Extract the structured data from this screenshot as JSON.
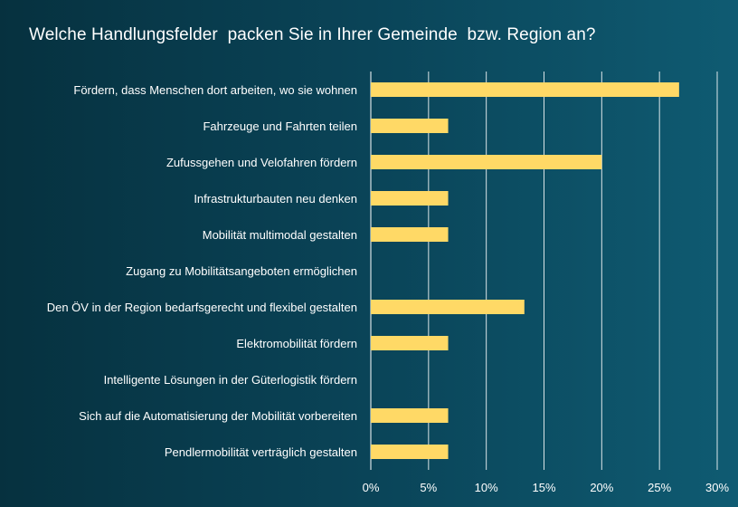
{
  "colors": {
    "bar": "#ffd966",
    "gridline": "#ffffff",
    "text": "#ffffff",
    "background_left": "#06313f",
    "background_right": "#0f5b72"
  },
  "chart_data": {
    "type": "bar",
    "orientation": "horizontal",
    "title": "Welche Handlungsfelder  packen Sie in Ihrer Gemeinde  bzw. Region an?",
    "xlabel": "",
    "ylabel": "",
    "categories": [
      "Fördern, dass Menschen dort arbeiten, wo sie wohnen",
      "Fahrzeuge und Fahrten teilen",
      "Zufussgehen und Velofahren fördern",
      "Infrastrukturbauten neu denken",
      "Mobilität multimodal gestalten",
      "Zugang zu Mobilitätsangeboten ermöglichen",
      "Den ÖV in der Region bedarfsgerecht und flexibel gestalten",
      "Elektromobilität fördern",
      "Intelligente Lösungen in der Güterlogistik fördern",
      "Sich auf die Automatisierung der Mobilität vorbereiten",
      "Pendlermobilität verträglich gestalten"
    ],
    "values": [
      26.7,
      6.7,
      20.0,
      6.7,
      6.7,
      0,
      13.3,
      6.7,
      0,
      6.7,
      6.7
    ],
    "xlim": [
      0,
      30
    ],
    "ticks": [
      0,
      5,
      10,
      15,
      20,
      25,
      30
    ],
    "tick_labels": [
      "0%",
      "5%",
      "10%",
      "15%",
      "20%",
      "25%",
      "30%"
    ],
    "grid": true,
    "legend": "none"
  }
}
